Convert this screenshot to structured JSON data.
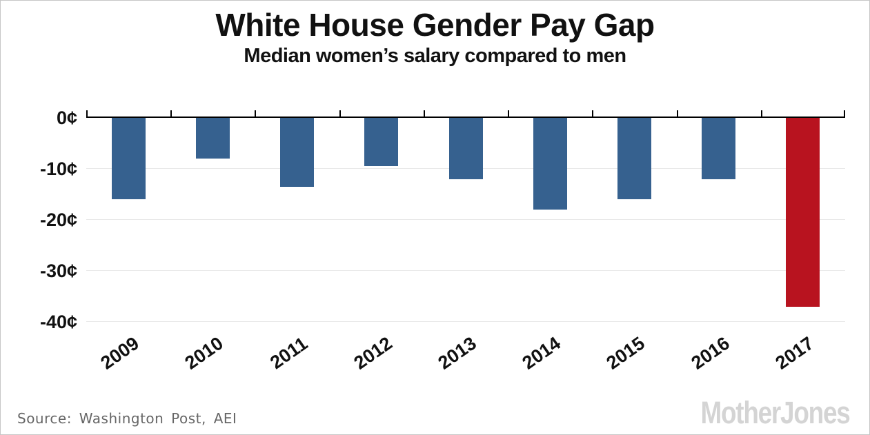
{
  "chart_data": {
    "type": "bar",
    "title": "White House Gender Pay Gap",
    "subtitle": "Median women’s salary compared to men",
    "categories": [
      "2009",
      "2010",
      "2011",
      "2012",
      "2013",
      "2014",
      "2015",
      "2016",
      "2017"
    ],
    "values": [
      -16,
      -8,
      -13.5,
      -9.5,
      -12,
      -18,
      -16,
      -12,
      -37
    ],
    "unit": "cents",
    "xlabel": "",
    "ylabel": "",
    "ylim": [
      -40,
      0
    ],
    "yticks": [
      {
        "label": "0¢",
        "value": 0
      },
      {
        "label": "-10¢",
        "value": -10
      },
      {
        "label": "-20¢",
        "value": -20
      },
      {
        "label": "-30¢",
        "value": -30
      },
      {
        "label": "-40¢",
        "value": -40
      }
    ],
    "highlight_index": 8,
    "grid": "horizontal-light",
    "legend": "none"
  },
  "colors": {
    "bar_default": "#36618f",
    "bar_highlight": "#b8131f",
    "axis": "#000000",
    "gridline": "#e7e7e7",
    "title_text": "#111111",
    "source_text": "#666666",
    "logo_text": "#d4d4d4"
  },
  "footer": {
    "source": "Source: Washington Post, AEI",
    "logo": "MotherJones"
  }
}
